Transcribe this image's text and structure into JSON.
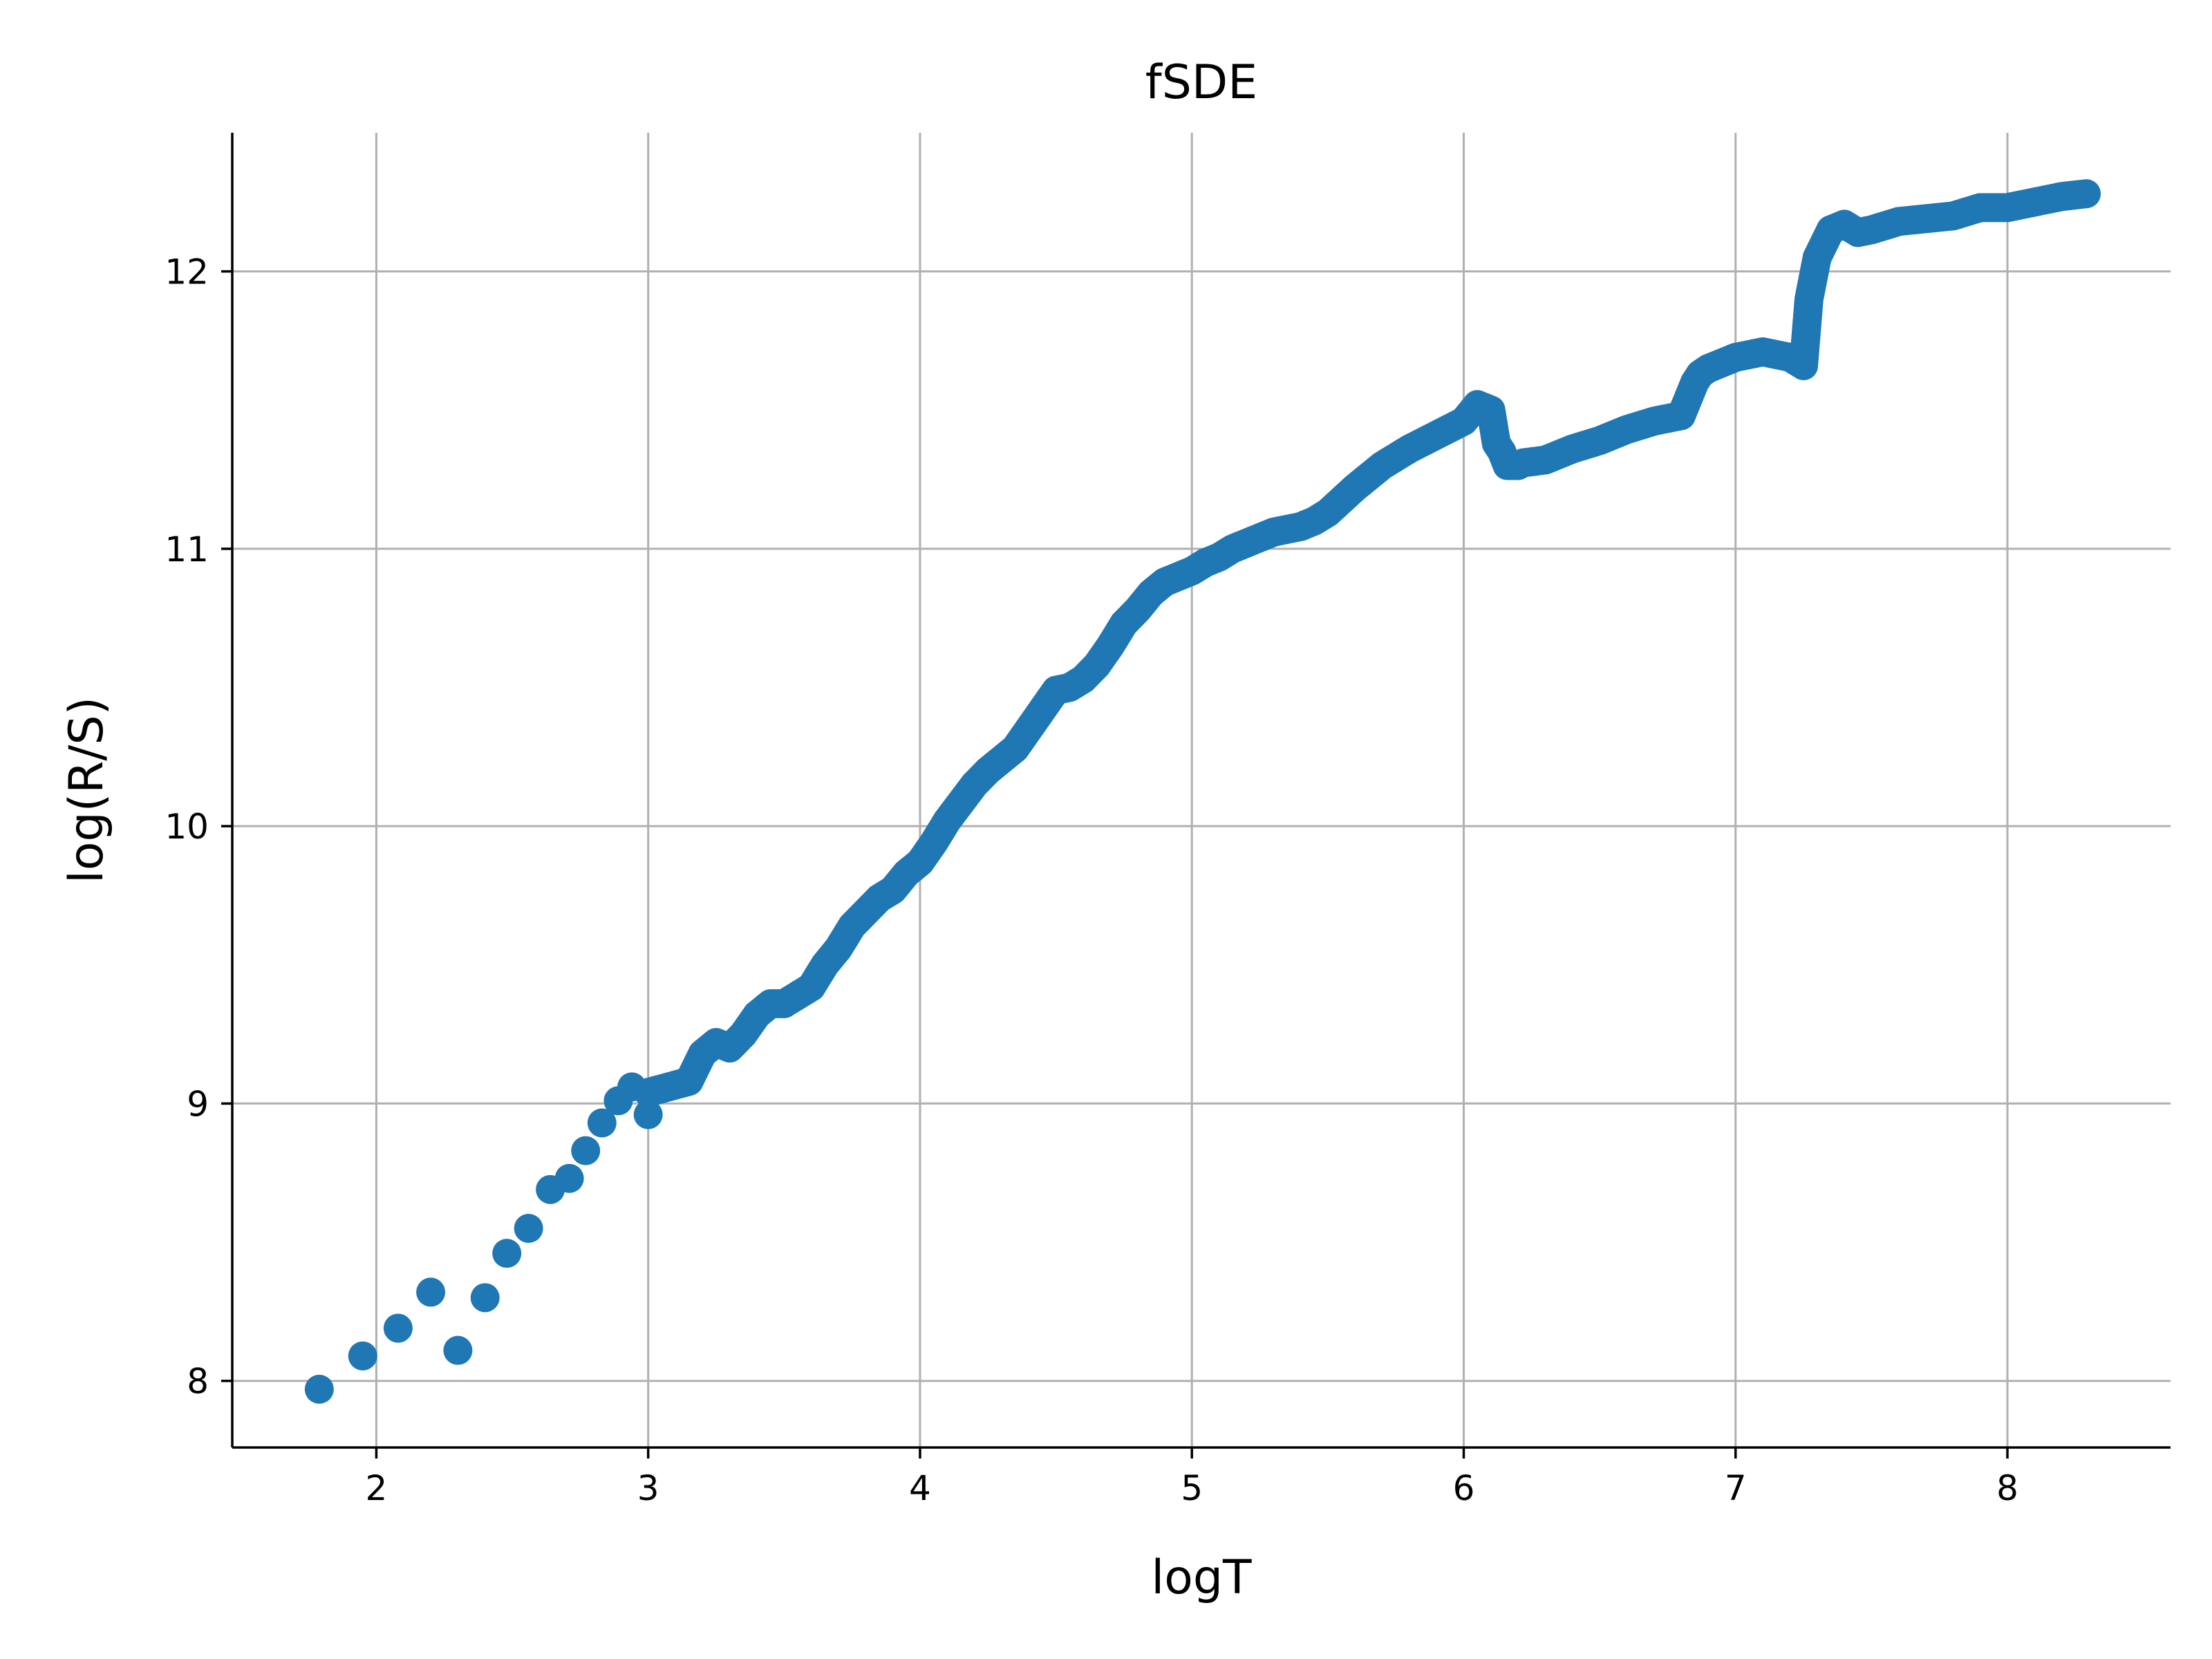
{
  "chart_data": {
    "type": "scatter",
    "title": "fSDE",
    "xlabel": "logT",
    "ylabel": "log(R/S)",
    "xlim": [
      1.47,
      8.6
    ],
    "ylim": [
      7.76,
      12.5
    ],
    "xticks": [
      "2",
      "3",
      "4",
      "5",
      "6",
      "7",
      "8"
    ],
    "yticks": [
      "8",
      "9",
      "10",
      "11",
      "12"
    ],
    "grid": true,
    "legend": "none",
    "marker_color": "#1f77b4",
    "sparse_points": {
      "x": [
        1.79,
        1.95,
        2.08,
        2.2,
        2.3,
        2.4,
        2.48,
        2.56,
        2.64,
        2.71,
        2.77,
        2.83,
        2.89,
        2.94,
        3.0
      ],
      "y": [
        7.97,
        8.09,
        8.19,
        8.32,
        8.11,
        8.3,
        8.46,
        8.55,
        8.69,
        8.73,
        8.83,
        8.93,
        9.01,
        9.06,
        8.96
      ]
    },
    "dense_curve": {
      "x": [
        3.0,
        3.15,
        3.2,
        3.25,
        3.3,
        3.35,
        3.4,
        3.45,
        3.5,
        3.6,
        3.65,
        3.7,
        3.75,
        3.8,
        3.85,
        3.9,
        3.95,
        4.0,
        4.05,
        4.1,
        4.2,
        4.25,
        4.3,
        4.35,
        4.4,
        4.45,
        4.5,
        4.55,
        4.6,
        4.65,
        4.7,
        4.75,
        4.8,
        4.85,
        4.9,
        4.95,
        5.0,
        5.05,
        5.1,
        5.15,
        5.2,
        5.3,
        5.4,
        5.45,
        5.5,
        5.6,
        5.65,
        5.7,
        5.8,
        5.9,
        6.0,
        6.05,
        6.1,
        6.12,
        6.14,
        6.16,
        6.2,
        6.22,
        6.3,
        6.4,
        6.5,
        6.6,
        6.7,
        6.8,
        6.85,
        6.87,
        6.9,
        7.0,
        7.1,
        7.2,
        7.25,
        7.27,
        7.3,
        7.35,
        7.4,
        7.45,
        7.5,
        7.6,
        7.7,
        7.8,
        7.9,
        8.0,
        8.1,
        8.2,
        8.29
      ],
      "y": [
        9.04,
        9.08,
        9.18,
        9.22,
        9.2,
        9.25,
        9.32,
        9.36,
        9.36,
        9.42,
        9.5,
        9.56,
        9.64,
        9.69,
        9.74,
        9.77,
        9.83,
        9.87,
        9.94,
        10.02,
        10.15,
        10.2,
        10.24,
        10.28,
        10.35,
        10.42,
        10.49,
        10.5,
        10.53,
        10.58,
        10.65,
        10.73,
        10.78,
        10.84,
        10.88,
        10.9,
        10.92,
        10.95,
        10.97,
        11.0,
        11.02,
        11.06,
        11.08,
        11.1,
        11.13,
        11.22,
        11.26,
        11.3,
        11.36,
        11.41,
        11.46,
        11.52,
        11.5,
        11.38,
        11.35,
        11.3,
        11.3,
        11.31,
        11.32,
        11.36,
        11.39,
        11.43,
        11.46,
        11.48,
        11.6,
        11.63,
        11.65,
        11.69,
        11.71,
        11.69,
        11.66,
        11.9,
        12.05,
        12.15,
        12.17,
        12.14,
        12.15,
        12.18,
        12.19,
        12.2,
        12.23,
        12.23,
        12.25,
        12.27,
        12.28
      ]
    }
  }
}
